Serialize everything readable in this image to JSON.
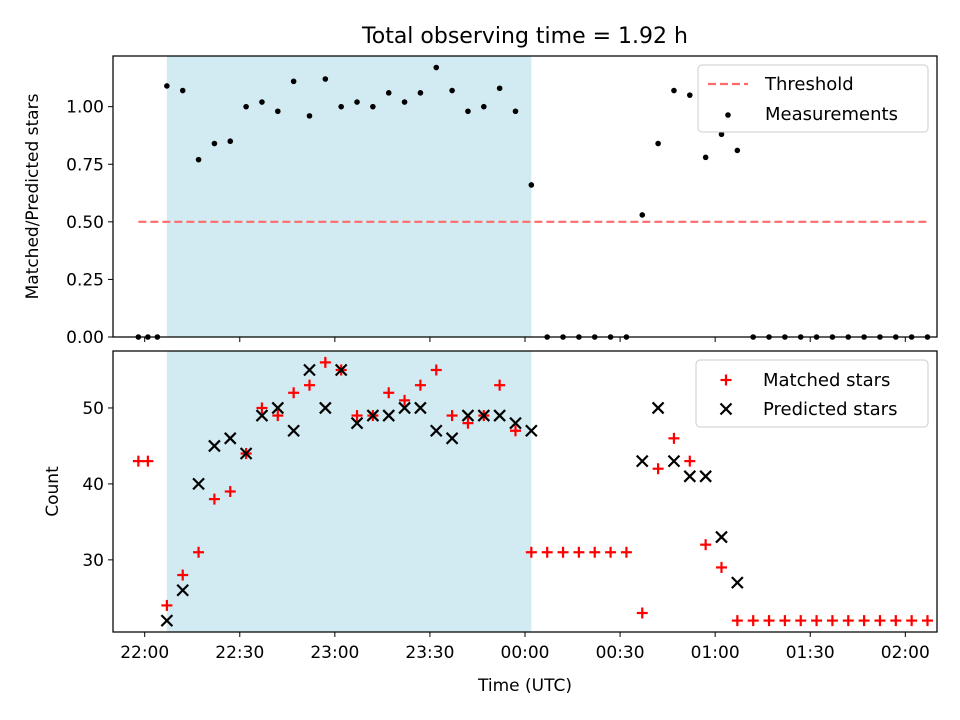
{
  "title": "Total observing time = 1.92 h",
  "xlabel": "Time (UTC)",
  "x_ticks": [
    "22:00",
    "22:30",
    "23:00",
    "23:30",
    "00:00",
    "00:30",
    "01:00",
    "01:30",
    "02:00"
  ],
  "colors": {
    "highlight": "#add8e6",
    "threshold": "#ff6b6b",
    "matched": "#ff0000",
    "predicted": "#000000",
    "measurements": "#000000"
  },
  "chart_data": [
    {
      "type": "scatter",
      "ylabel": "Matched/Predicted stars",
      "ylim": [
        0,
        1.22
      ],
      "y_ticks": [
        "0.00",
        "0.25",
        "0.50",
        "0.75",
        "1.00"
      ],
      "xlim": [
        "21:50",
        "02:10"
      ],
      "highlight_span": [
        "22:07",
        "00:02"
      ],
      "legend": [
        "Threshold",
        "Measurements"
      ],
      "legend_position": "top-right",
      "threshold": {
        "name": "Threshold",
        "y": 0.5,
        "x_range": [
          "21:58",
          "02:07"
        ],
        "style": "dashed"
      },
      "series": [
        {
          "name": "Measurements",
          "x": [
            "21:58",
            "22:01",
            "22:04",
            "22:07",
            "22:12",
            "22:17",
            "22:22",
            "22:27",
            "22:32",
            "22:37",
            "22:42",
            "22:47",
            "22:52",
            "22:57",
            "23:02",
            "23:07",
            "23:12",
            "23:17",
            "23:22",
            "23:27",
            "23:32",
            "23:37",
            "23:42",
            "23:47",
            "23:52",
            "23:57",
            "00:02",
            "00:07",
            "00:12",
            "00:17",
            "00:22",
            "00:27",
            "00:32",
            "00:37",
            "00:42",
            "00:47",
            "00:52",
            "00:57",
            "01:02",
            "01:07",
            "01:12",
            "01:17",
            "01:22",
            "01:27",
            "01:32",
            "01:37",
            "01:42",
            "01:47",
            "01:52",
            "01:57",
            "02:02",
            "02:07"
          ],
          "y": [
            0,
            0,
            0,
            1.09,
            1.07,
            0.77,
            0.84,
            0.85,
            1.0,
            1.02,
            0.98,
            1.11,
            0.96,
            1.12,
            1.0,
            1.02,
            1.0,
            1.06,
            1.02,
            1.06,
            1.17,
            1.07,
            0.98,
            1.0,
            1.08,
            0.98,
            0.66,
            0,
            0,
            0,
            0,
            0,
            0,
            0.53,
            0.84,
            1.07,
            1.05,
            0.78,
            0.88,
            0.81,
            0,
            0,
            0,
            0,
            0,
            0,
            0,
            0,
            0,
            0,
            0,
            0
          ]
        }
      ]
    },
    {
      "type": "scatter",
      "ylabel": "Count",
      "ylim": [
        20.5,
        57.5
      ],
      "y_ticks": [
        "30",
        "40",
        "50"
      ],
      "xlim": [
        "21:50",
        "02:10"
      ],
      "highlight_span": [
        "22:07",
        "00:02"
      ],
      "legend": [
        "Matched stars",
        "Predicted stars"
      ],
      "legend_position": "top-right",
      "series": [
        {
          "name": "Matched stars",
          "marker": "+",
          "x": [
            "21:58",
            "22:01",
            "22:07",
            "22:12",
            "22:17",
            "22:22",
            "22:27",
            "22:32",
            "22:37",
            "22:42",
            "22:47",
            "22:52",
            "22:57",
            "23:02",
            "23:07",
            "23:12",
            "23:17",
            "23:22",
            "23:27",
            "23:32",
            "23:37",
            "23:42",
            "23:47",
            "23:52",
            "23:57",
            "00:02",
            "00:07",
            "00:12",
            "00:17",
            "00:22",
            "00:27",
            "00:32",
            "00:37",
            "00:42",
            "00:47",
            "00:52",
            "00:57",
            "01:02",
            "01:07",
            "01:12",
            "01:17",
            "01:22",
            "01:27",
            "01:32",
            "01:37",
            "01:42",
            "01:47",
            "01:52",
            "01:57",
            "02:02",
            "02:07"
          ],
          "y": [
            43,
            43,
            24,
            28,
            31,
            38,
            39,
            44,
            50,
            49,
            52,
            53,
            56,
            55,
            49,
            49,
            52,
            51,
            53,
            55,
            49,
            48,
            49,
            53,
            47,
            31,
            31,
            31,
            31,
            31,
            31,
            31,
            23,
            42,
            46,
            43,
            32,
            29,
            22,
            22,
            22,
            22,
            22,
            22,
            22,
            22,
            22,
            22,
            22,
            22,
            22
          ]
        },
        {
          "name": "Predicted stars",
          "marker": "x",
          "x": [
            "22:07",
            "22:12",
            "22:17",
            "22:22",
            "22:27",
            "22:32",
            "22:37",
            "22:42",
            "22:47",
            "22:52",
            "22:57",
            "23:02",
            "23:07",
            "23:12",
            "23:17",
            "23:22",
            "23:27",
            "23:32",
            "23:37",
            "23:42",
            "23:47",
            "23:52",
            "23:57",
            "00:02",
            "00:37",
            "00:42",
            "00:47",
            "00:52",
            "00:57",
            "01:02",
            "01:07"
          ],
          "y": [
            22,
            26,
            40,
            45,
            46,
            44,
            49,
            50,
            47,
            55,
            50,
            55,
            48,
            49,
            49,
            50,
            50,
            47,
            46,
            49,
            49,
            49,
            48,
            47,
            43,
            50,
            43,
            41,
            41,
            33,
            27
          ]
        }
      ]
    }
  ]
}
